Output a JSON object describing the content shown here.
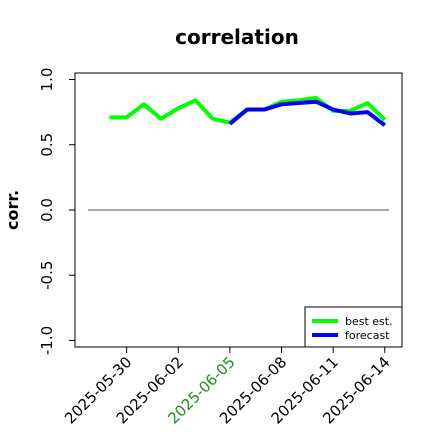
{
  "chart_data": {
    "type": "line",
    "title": "correlation",
    "xlabel": "",
    "ylabel": "corr.",
    "ylim": [
      -1.05,
      1.05
    ],
    "yticks": [
      1.0,
      0.5,
      0.0,
      -0.5,
      -1.0
    ],
    "ytick_labels": [
      "1.0",
      "0.5",
      "0.0",
      "-0.5",
      "-1.0"
    ],
    "xlim": [
      "2025-05-27",
      "2025-06-15"
    ],
    "xticks": [
      "2025-05-30",
      "2025-06-02",
      "2025-06-05",
      "2025-06-08",
      "2025-06-11",
      "2025-06-14"
    ],
    "xtick_colors": [
      "#000000",
      "#000000",
      "#228b22",
      "#000000",
      "#000000",
      "#000000"
    ],
    "zero_line": 0.0,
    "grid": false,
    "legend": {
      "placement": "lower-right",
      "entries": [
        "best est.",
        "forecast"
      ]
    },
    "series": [
      {
        "name": "best est.",
        "color": "#00ff00",
        "x": [
          "2025-05-29",
          "2025-05-30",
          "2025-05-31",
          "2025-06-01",
          "2025-06-02",
          "2025-06-03",
          "2025-06-04",
          "2025-06-05",
          "2025-06-06",
          "2025-06-07",
          "2025-06-08",
          "2025-06-09",
          "2025-06-10",
          "2025-06-11",
          "2025-06-12",
          "2025-06-13",
          "2025-06-14"
        ],
        "values": [
          0.71,
          0.71,
          0.81,
          0.7,
          0.78,
          0.84,
          0.7,
          0.67,
          0.77,
          0.77,
          0.83,
          0.84,
          0.86,
          0.76,
          0.76,
          0.82,
          0.69
        ]
      },
      {
        "name": "forecast",
        "color": "#0000ff",
        "x": [
          "2025-06-05",
          "2025-06-06",
          "2025-06-07",
          "2025-06-08",
          "2025-06-09",
          "2025-06-10",
          "2025-06-11",
          "2025-06-12",
          "2025-06-13",
          "2025-06-14"
        ],
        "values": [
          0.66,
          0.77,
          0.77,
          0.81,
          0.82,
          0.83,
          0.77,
          0.74,
          0.75,
          0.65
        ]
      }
    ]
  }
}
